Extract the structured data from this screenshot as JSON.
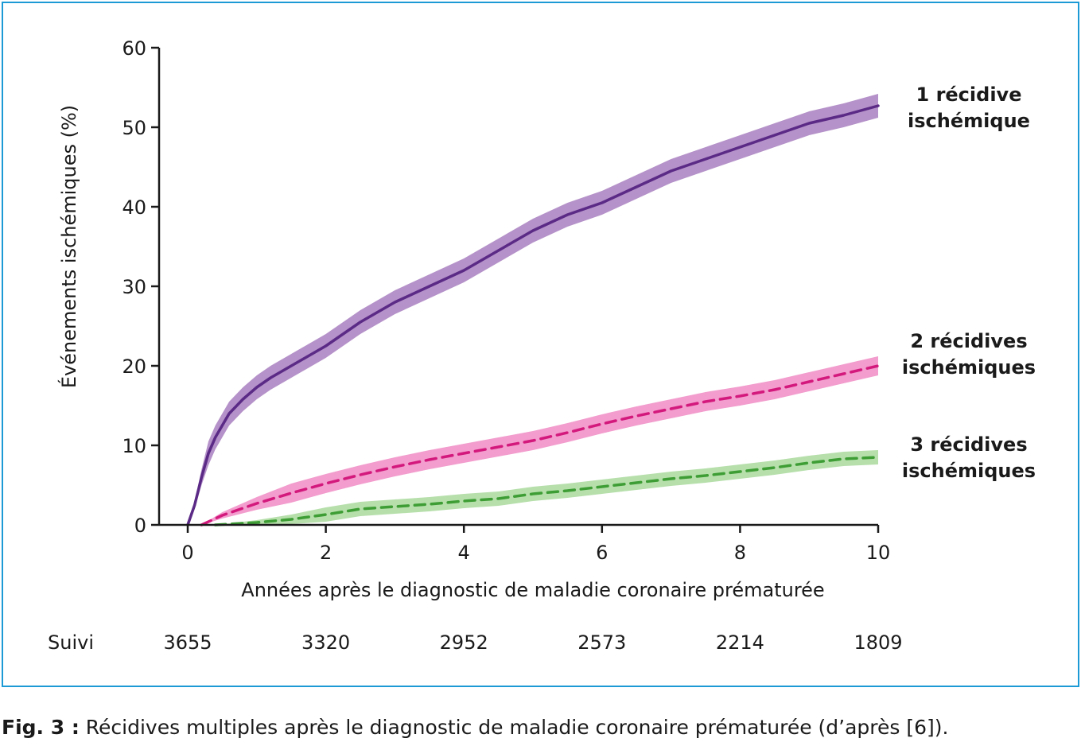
{
  "chart_data": {
    "type": "line",
    "title": "",
    "xlabel": "Années après le diagnostic de maladie coronaire prématurée",
    "ylabel": "Événements ischémiques (%)",
    "xlim": [
      0,
      10
    ],
    "ylim": [
      0,
      60
    ],
    "x_ticks": [
      "0",
      "2",
      "4",
      "6",
      "8",
      "10"
    ],
    "y_ticks": [
      "0",
      "10",
      "20",
      "30",
      "40",
      "50",
      "60"
    ],
    "grid": false,
    "legend": "right",
    "series": [
      {
        "name": "1 récidive ischémique",
        "label_lines": [
          "1 récidive",
          "ischémique"
        ],
        "style": "solid",
        "color": "#5b2a86",
        "band_color": "#a87fc0",
        "x": [
          0,
          0.1,
          0.2,
          0.3,
          0.4,
          0.5,
          0.6,
          0.8,
          1,
          1.2,
          1.5,
          2,
          2.5,
          3,
          3.5,
          4,
          4.5,
          5,
          5.5,
          6,
          6.5,
          7,
          7.5,
          8,
          8.5,
          9,
          9.5,
          10
        ],
        "y": [
          0,
          2.5,
          6,
          9,
          11,
          12.5,
          14,
          15.8,
          17.3,
          18.5,
          20,
          22.5,
          25.5,
          28,
          30,
          32,
          34.5,
          37,
          39,
          40.5,
          42.5,
          44.5,
          46,
          47.5,
          49,
          50.5,
          51.5,
          52.7
        ],
        "band": 1.5
      },
      {
        "name": "2 récidives ischémiques",
        "label_lines": [
          "2 récidives",
          "ischémiques"
        ],
        "style": "dashed",
        "color": "#d4197d",
        "band_color": "#f08cc4",
        "x": [
          0.2,
          0.5,
          1,
          1.5,
          2,
          2.5,
          3,
          3.5,
          4,
          4.5,
          5,
          5.5,
          6,
          6.5,
          7,
          7.5,
          8,
          8.5,
          9,
          9.5,
          10
        ],
        "y": [
          0,
          1.2,
          2.7,
          4,
          5.2,
          6.3,
          7.3,
          8.2,
          9,
          9.8,
          10.6,
          11.6,
          12.7,
          13.7,
          14.6,
          15.5,
          16.2,
          17,
          18,
          19,
          20
        ],
        "band": 1.2
      },
      {
        "name": "3 récidives ischémiques",
        "label_lines": [
          "3 récidives",
          "ischémiques"
        ],
        "style": "dashed",
        "color": "#3e9e35",
        "band_color": "#a9d99c",
        "x": [
          0.4,
          1,
          1.5,
          2,
          2.5,
          3,
          3.5,
          4,
          4.5,
          5,
          5.5,
          6,
          6.5,
          7,
          7.5,
          8,
          8.5,
          9,
          9.5,
          10
        ],
        "y": [
          0,
          0.3,
          0.7,
          1.3,
          2,
          2.3,
          2.6,
          3,
          3.3,
          3.9,
          4.3,
          4.8,
          5.3,
          5.8,
          6.2,
          6.7,
          7.2,
          7.8,
          8.3,
          8.5
        ],
        "band": 0.9
      }
    ],
    "follow_up": {
      "label": "Suivi",
      "x": [
        0,
        2,
        4,
        6,
        8,
        10
      ],
      "values": [
        "3655",
        "3320",
        "2952",
        "2573",
        "2214",
        "1809"
      ]
    }
  },
  "caption": {
    "label": "Fig. 3 :",
    "text": " Récidives multiples après le diagnostic de maladie coronaire prématurée (d’après [6])."
  }
}
